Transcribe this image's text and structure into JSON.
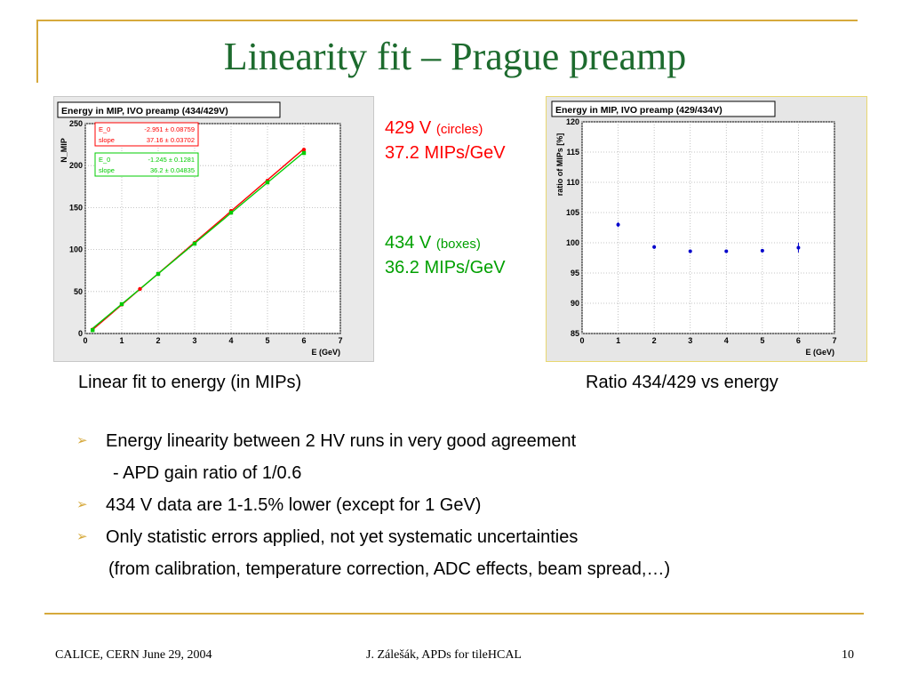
{
  "slide": {
    "title": "Linearity fit – Prague preamp",
    "colors": {
      "title": "#1d6b2e",
      "accent": "#d6a93c",
      "red": "#ff0000",
      "green": "#00a000"
    }
  },
  "legend": {
    "v429": {
      "voltage": "429 V",
      "marker": "(circles)",
      "value": "37.2 MIPs/GeV"
    },
    "v434": {
      "voltage": "434 V",
      "marker": "(boxes)",
      "value": "36.2 MIPs/GeV"
    }
  },
  "captions": {
    "left": "Linear fit to energy (in MIPs)",
    "right": "Ratio 434/429 vs energy"
  },
  "bullets": {
    "mark": "➢",
    "b1": "Energy linearity between 2 HV runs in very good agreement",
    "b1_sub": "- APD gain ratio of 1/0.6",
    "b2": "434 V data are 1-1.5% lower (except for 1 GeV)",
    "b3": "Only statistic errors applied, not yet systematic uncertainties",
    "b3_sub": "(from calibration, temperature correction, ADC effects, beam spread,…)"
  },
  "footer": {
    "left": "CALICE, CERN June 29, 2004",
    "center": "J. Zálešák, APDs for tileHCAL",
    "page": "10"
  },
  "chart_data": [
    {
      "type": "scatter",
      "title": "Energy in MIP, IVO preamp (434/429V)",
      "xlabel": "E (GeV)",
      "ylabel": "N_MIP",
      "xlim": [
        0,
        7
      ],
      "ylim": [
        0,
        250
      ],
      "xticks": [
        0,
        1,
        2,
        3,
        4,
        5,
        6,
        7
      ],
      "yticks": [
        0,
        50,
        100,
        150,
        200,
        250
      ],
      "grid": true,
      "series": [
        {
          "name": "429 V",
          "color": "#ff0000",
          "marker": "circle",
          "x": [
            0.2,
            1,
            1.5,
            2,
            3,
            4,
            5,
            6
          ],
          "y": [
            4.5,
            34.5,
            53,
            71,
            108,
            146,
            182,
            219
          ],
          "fit": {
            "E_0": "-2.951 ± 0.08759",
            "slope": "37.16 ± 0.03702",
            "e0": -2.951,
            "k": 37.16
          }
        },
        {
          "name": "434 V",
          "color": "#00cc00",
          "marker": "box",
          "x": [
            0.2,
            1,
            2,
            3,
            4,
            5,
            6
          ],
          "y": [
            4,
            35,
            71,
            107,
            144,
            180,
            215
          ],
          "fit": {
            "E_0": "-1.245 ± 0.1281",
            "slope": "36.2 ± 0.04835",
            "e0": -1.245,
            "k": 36.2
          }
        }
      ],
      "fit_labels": {
        "e0": "E_0",
        "slope": "slope"
      }
    },
    {
      "type": "scatter",
      "title": "Energy in MIP, IVO preamp (429/434V)",
      "xlabel": "E (GeV)",
      "ylabel": "ratio of MIPs [%]",
      "xlim": [
        0,
        7
      ],
      "ylim": [
        85,
        120
      ],
      "xticks": [
        0,
        1,
        2,
        3,
        4,
        5,
        6,
        7
      ],
      "yticks": [
        85,
        90,
        95,
        100,
        105,
        110,
        115,
        120
      ],
      "grid": true,
      "series": [
        {
          "color": "#0000cc",
          "x": [
            1,
            2,
            3,
            4,
            5,
            6
          ],
          "y": [
            103.0,
            99.3,
            98.6,
            98.6,
            98.7,
            99.2
          ],
          "err": [
            0.4,
            0.3,
            0.2,
            0.2,
            0.2,
            0.8
          ]
        }
      ]
    }
  ]
}
